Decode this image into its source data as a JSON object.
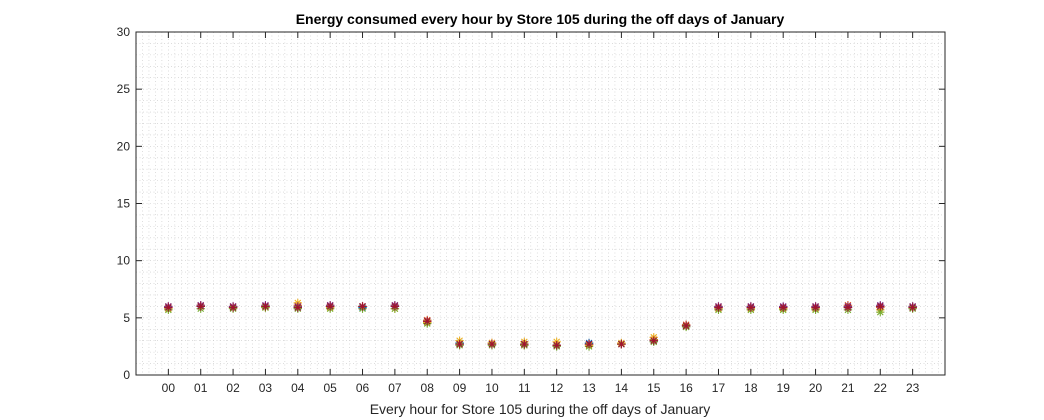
{
  "chart_data": {
    "type": "scatter",
    "title": "Energy consumed every hour by Store 105 during the off days of January",
    "xlabel": "Every hour for Store 105 during the off days of January",
    "ylabel": "",
    "categories": [
      "00",
      "01",
      "02",
      "03",
      "04",
      "05",
      "06",
      "07",
      "08",
      "09",
      "10",
      "11",
      "12",
      "13",
      "14",
      "15",
      "16",
      "17",
      "18",
      "19",
      "20",
      "21",
      "22",
      "23"
    ],
    "ylim": [
      0,
      30
    ],
    "yticks": [
      "0",
      "5",
      "10",
      "15",
      "20",
      "25",
      "30"
    ],
    "grid": "minor-dotted",
    "marker": "asterisk",
    "series": [
      {
        "color": "#0072BD",
        "values": [
          5.9,
          6.0,
          5.9,
          6.0,
          5.9,
          6.0,
          5.9,
          6.0,
          4.6,
          2.8,
          2.7,
          2.7,
          2.6,
          2.8,
          2.7,
          3.0,
          4.3,
          5.9,
          5.9,
          5.9,
          5.9,
          5.9,
          6.0,
          5.9
        ]
      },
      {
        "color": "#D95319",
        "values": [
          6.0,
          6.1,
          6.0,
          6.0,
          6.1,
          6.1,
          6.0,
          6.1,
          4.8,
          2.7,
          2.8,
          2.6,
          2.6,
          2.7,
          2.7,
          3.1,
          4.4,
          6.0,
          6.0,
          5.9,
          6.0,
          6.1,
          5.9,
          6.0
        ]
      },
      {
        "color": "#EDB120",
        "values": [
          5.8,
          6.0,
          5.9,
          5.9,
          6.3,
          5.9,
          6.0,
          5.8,
          4.6,
          3.0,
          2.8,
          2.9,
          2.9,
          2.6,
          2.8,
          3.3,
          4.3,
          5.8,
          5.8,
          5.8,
          5.8,
          5.9,
          5.7,
          5.9
        ]
      },
      {
        "color": "#7E2F8E",
        "values": [
          6.0,
          6.1,
          6.0,
          6.1,
          6.0,
          6.1,
          6.0,
          6.1,
          4.7,
          2.7,
          2.7,
          2.7,
          2.6,
          2.7,
          2.7,
          3.0,
          4.3,
          6.0,
          6.0,
          6.0,
          6.0,
          6.0,
          6.1,
          6.0
        ]
      },
      {
        "color": "#77AC30",
        "values": [
          5.7,
          5.8,
          5.8,
          5.9,
          5.8,
          5.8,
          5.8,
          5.8,
          4.5,
          2.6,
          2.6,
          2.6,
          2.5,
          2.5,
          2.7,
          2.9,
          4.2,
          5.7,
          5.7,
          5.7,
          5.7,
          5.7,
          5.5,
          5.8
        ]
      },
      {
        "color": "#A2142F",
        "values": [
          5.9,
          6.0,
          5.9,
          6.0,
          5.9,
          6.0,
          6.0,
          6.0,
          4.7,
          2.7,
          2.7,
          2.7,
          2.6,
          2.7,
          2.7,
          3.0,
          4.3,
          5.9,
          5.9,
          5.9,
          5.9,
          5.9,
          6.0,
          5.9
        ]
      }
    ]
  }
}
